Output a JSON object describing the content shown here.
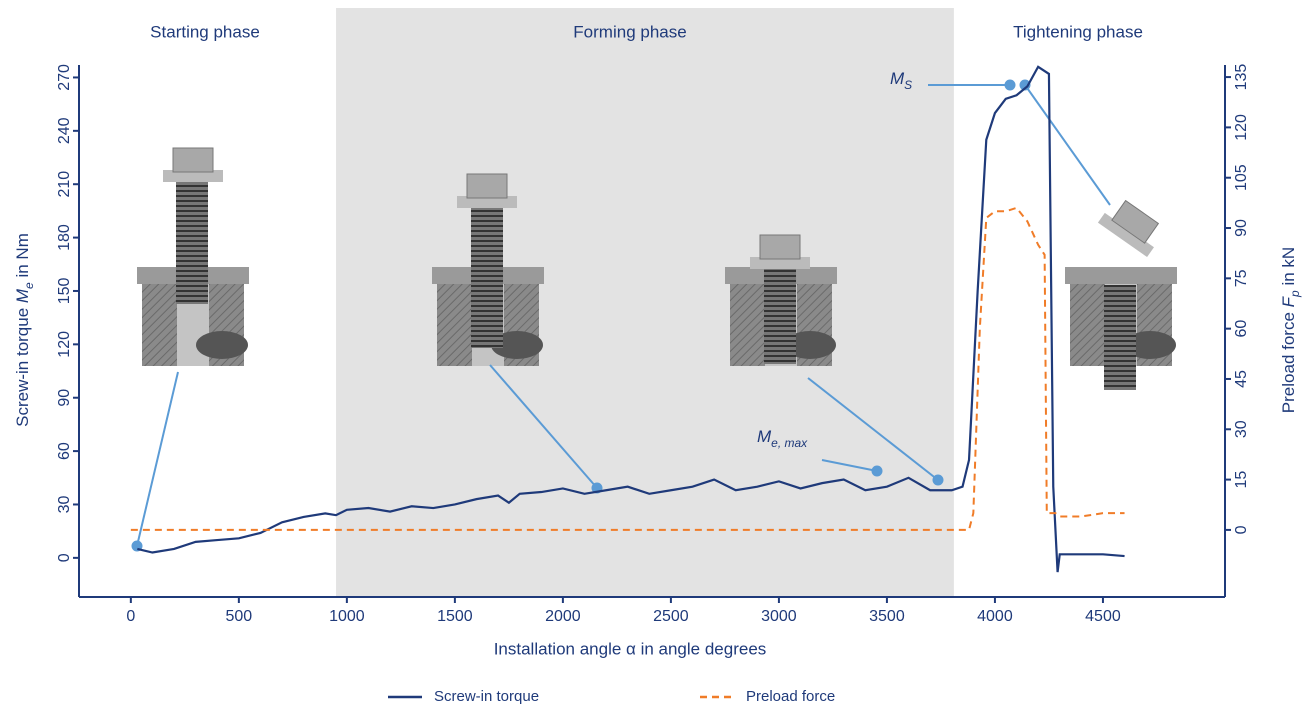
{
  "chart_data": {
    "type": "line",
    "phases": [
      "Starting phase",
      "Forming phase",
      "Tightening phase"
    ],
    "x_label": "Installation angle α in angle degrees",
    "y_label": [
      "Screw-in torque ",
      "M",
      "e",
      " in Nm"
    ],
    "y2_label": [
      "Preload force ",
      "F",
      "p",
      " in kN"
    ],
    "annotations": [
      [
        "M",
        "S"
      ],
      [
        "M",
        "e, max"
      ]
    ],
    "xlim": [
      -240,
      5065
    ],
    "xticks": [
      0,
      500,
      1000,
      1500,
      2000,
      2500,
      3000,
      3500,
      4000,
      4500
    ],
    "ylim": [
      -22,
      277
    ],
    "yticks": [
      0,
      30,
      60,
      90,
      120,
      150,
      180,
      210,
      240,
      270
    ],
    "y2lim": [
      -20,
      138.6
    ],
    "y2ticks": [
      0,
      15,
      30,
      45,
      60,
      75,
      90,
      105,
      120,
      135
    ],
    "shaded_x": [
      950,
      3810
    ],
    "series": [
      {
        "name": "Screw-in torque",
        "color": "#1f3a7a",
        "x": [
          30,
          100,
          200,
          300,
          400,
          500,
          600,
          700,
          800,
          900,
          950,
          1000,
          1100,
          1200,
          1300,
          1400,
          1500,
          1600,
          1700,
          1750,
          1800,
          1900,
          2000,
          2100,
          2200,
          2300,
          2400,
          2500,
          2600,
          2700,
          2800,
          2900,
          3000,
          3100,
          3200,
          3300,
          3400,
          3500,
          3600,
          3700,
          3800,
          3850,
          3880,
          3920,
          3960,
          4000,
          4050,
          4100,
          4150,
          4200,
          4250,
          4270,
          4290,
          4300,
          4400,
          4500,
          4600
        ],
        "values": [
          5,
          3,
          5,
          9,
          10,
          11,
          14,
          20,
          23,
          25,
          24,
          27,
          28,
          26,
          29,
          28,
          30,
          33,
          35,
          31,
          36,
          37,
          39,
          36,
          38,
          40,
          36,
          38,
          40,
          44,
          38,
          40,
          43,
          39,
          42,
          44,
          38,
          40,
          45,
          38,
          38,
          40,
          55,
          150,
          235,
          250,
          258,
          260,
          265,
          276,
          272,
          40,
          -8,
          2,
          2,
          2,
          1
        ]
      },
      {
        "name": "Preload force",
        "color": "#f07c28",
        "axis": "y2",
        "dashed": true,
        "x": [
          0,
          3880,
          3900,
          3930,
          3960,
          4000,
          4050,
          4100,
          4150,
          4200,
          4230,
          4240,
          4280,
          4300,
          4400,
          4500,
          4600
        ],
        "values": [
          0,
          0,
          5,
          60,
          93,
          95,
          95,
          96,
          92,
          85,
          82,
          5,
          5,
          4,
          4,
          5,
          5
        ]
      }
    ]
  }
}
